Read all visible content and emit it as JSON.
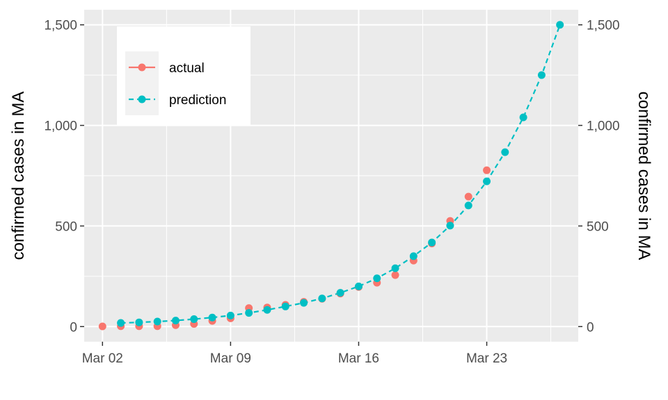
{
  "chart_data": {
    "type": "scatter",
    "title": "",
    "xlabel": "",
    "ylabel_left": "confirmed cases in MA",
    "ylabel_right": "confirmed cases in MA",
    "x_ticks": [
      "Mar 02",
      "Mar 09",
      "Mar 16",
      "Mar 23"
    ],
    "y_ticks": [
      "0",
      "500",
      "1,000",
      "1,500"
    ],
    "y_tick_values": [
      0,
      500,
      1000,
      1500
    ],
    "xlim": [
      "2020-03-01",
      "2020-03-28"
    ],
    "ylim": [
      -75,
      1575
    ],
    "grid": true,
    "legend_position": "top-left",
    "series": [
      {
        "name": "actual",
        "color": "#F8766D",
        "line": "none",
        "x": [
          "2020-03-02",
          "2020-03-03",
          "2020-03-04",
          "2020-03-05",
          "2020-03-06",
          "2020-03-07",
          "2020-03-08",
          "2020-03-09",
          "2020-03-10",
          "2020-03-11",
          "2020-03-12",
          "2020-03-13",
          "2020-03-14",
          "2020-03-15",
          "2020-03-16",
          "2020-03-17",
          "2020-03-18",
          "2020-03-19",
          "2020-03-20",
          "2020-03-21",
          "2020-03-22",
          "2020-03-23"
        ],
        "y": [
          1,
          2,
          2,
          2,
          7,
          13,
          28,
          41,
          92,
          95,
          108,
          123,
          138,
          164,
          197,
          218,
          256,
          328,
          413,
          525,
          646,
          777
        ]
      },
      {
        "name": "prediction",
        "color": "#00BFC4",
        "line": "dashed",
        "x": [
          "2020-03-03",
          "2020-03-04",
          "2020-03-05",
          "2020-03-06",
          "2020-03-07",
          "2020-03-08",
          "2020-03-09",
          "2020-03-10",
          "2020-03-11",
          "2020-03-12",
          "2020-03-13",
          "2020-03-14",
          "2020-03-15",
          "2020-03-16",
          "2020-03-17",
          "2020-03-18",
          "2020-03-19",
          "2020-03-20",
          "2020-03-21",
          "2020-03-22",
          "2020-03-23",
          "2020-03-24",
          "2020-03-25",
          "2020-03-26",
          "2020-03-27"
        ],
        "y": [
          18,
          21,
          25,
          30,
          37,
          45,
          55,
          68,
          83,
          100,
          118,
          140,
          168,
          200,
          240,
          290,
          350,
          418,
          502,
          602,
          722,
          867,
          1040,
          1250,
          1500
        ]
      }
    ]
  }
}
